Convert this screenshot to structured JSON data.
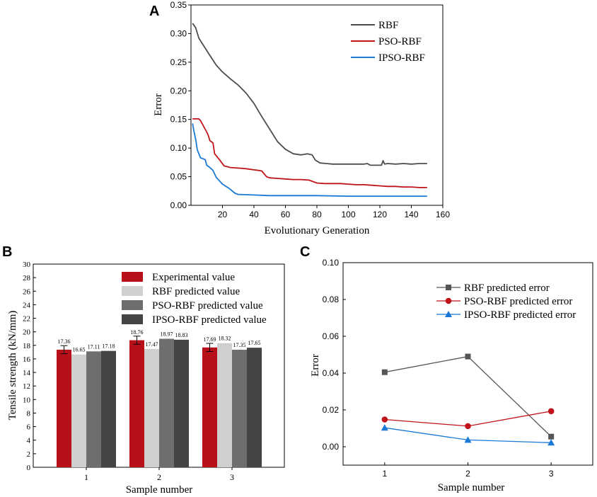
{
  "chart_data": [
    {
      "panel": "A",
      "type": "line",
      "title": "",
      "xlabel": "Evolutionary Generation",
      "ylabel": "Error",
      "xlim": [
        0,
        160
      ],
      "ylim": [
        0,
        0.35
      ],
      "xticks": [
        20,
        40,
        60,
        80,
        100,
        120,
        140,
        160
      ],
      "yticks": [
        0.0,
        0.05,
        0.1,
        0.15,
        0.2,
        0.25,
        0.3,
        0.35
      ],
      "xtick_labels": [
        "20",
        "40",
        "60",
        "80",
        "100",
        "120",
        "140",
        "160"
      ],
      "ytick_labels": [
        "0.00",
        "0.05",
        "0.10",
        "0.15",
        "0.20",
        "0.25",
        "0.30",
        "0.35"
      ],
      "legend_position": "top-right",
      "series": [
        {
          "name": "RBF",
          "color": "#4d4d4d",
          "x": [
            1,
            3,
            5,
            8,
            12,
            16,
            20,
            25,
            30,
            35,
            40,
            45,
            50,
            55,
            60,
            65,
            70,
            74,
            77,
            79,
            82,
            86,
            90,
            95,
            100,
            105,
            110,
            112,
            114,
            118,
            121,
            122,
            123,
            125,
            130,
            135,
            140,
            145,
            150
          ],
          "y": [
            0.318,
            0.31,
            0.292,
            0.279,
            0.262,
            0.245,
            0.233,
            0.221,
            0.21,
            0.196,
            0.178,
            0.155,
            0.133,
            0.111,
            0.098,
            0.09,
            0.088,
            0.09,
            0.088,
            0.079,
            0.074,
            0.073,
            0.072,
            0.072,
            0.072,
            0.072,
            0.072,
            0.073,
            0.07,
            0.07,
            0.07,
            0.078,
            0.072,
            0.073,
            0.072,
            0.073,
            0.072,
            0.073,
            0.073
          ]
        },
        {
          "name": "PSO-RBF",
          "color": "#c0141a",
          "x": [
            1,
            5,
            6,
            10,
            11,
            12,
            14,
            15,
            18,
            21,
            25,
            30,
            35,
            40,
            43,
            45,
            48,
            50,
            55,
            60,
            65,
            70,
            75,
            80,
            85,
            90,
            95,
            100,
            105,
            110,
            115,
            120,
            125,
            130,
            135,
            140,
            145,
            150
          ],
          "y": [
            0.151,
            0.151,
            0.148,
            0.128,
            0.122,
            0.113,
            0.109,
            0.09,
            0.08,
            0.069,
            0.066,
            0.065,
            0.064,
            0.062,
            0.061,
            0.06,
            0.05,
            0.048,
            0.047,
            0.046,
            0.045,
            0.045,
            0.044,
            0.039,
            0.038,
            0.038,
            0.038,
            0.037,
            0.036,
            0.036,
            0.035,
            0.034,
            0.033,
            0.033,
            0.032,
            0.032,
            0.031,
            0.031
          ]
        },
        {
          "name": "IPSO-RBF",
          "color": "#1a79d6",
          "x": [
            1,
            2,
            3,
            4,
            6,
            9,
            10,
            12,
            14,
            16,
            19,
            20,
            24,
            28,
            30,
            40,
            50,
            60,
            80,
            100,
            120,
            140,
            150
          ],
          "y": [
            0.143,
            0.128,
            0.115,
            0.097,
            0.083,
            0.08,
            0.07,
            0.066,
            0.061,
            0.049,
            0.04,
            0.037,
            0.03,
            0.021,
            0.019,
            0.018,
            0.017,
            0.017,
            0.017,
            0.016,
            0.016,
            0.016,
            0.016
          ]
        }
      ]
    },
    {
      "panel": "B",
      "type": "bar",
      "title": "",
      "xlabel": "Sample number",
      "ylabel": "Tensile strength  (kN/mm)",
      "ylim": [
        0,
        30
      ],
      "yticks": [
        0,
        2,
        4,
        6,
        8,
        10,
        12,
        14,
        16,
        18,
        20,
        22,
        24,
        26,
        28,
        30
      ],
      "ytick_labels": [
        "0",
        "2",
        "4",
        "6",
        "8",
        "10",
        "12",
        "14",
        "16",
        "18",
        "20",
        "22",
        "24",
        "26",
        "28",
        "30"
      ],
      "categories": [
        "1",
        "2",
        "3"
      ],
      "legend_position": "top-right",
      "series": [
        {
          "name": "Experimental value",
          "color": "#b81018",
          "values": [
            17.36,
            18.76,
            17.69
          ],
          "labels": [
            "17.36",
            "18.76",
            "17.69"
          ],
          "error": [
            0.6,
            0.6,
            0.6
          ]
        },
        {
          "name": "RBF predicted value",
          "color": "#cfcfcf",
          "values": [
            16.65,
            17.47,
            18.32
          ],
          "labels": [
            "16.65",
            "17.47",
            "18.32"
          ]
        },
        {
          "name": "PSO-RBF predicted value",
          "color": "#6e6e6e",
          "values": [
            17.11,
            18.97,
            17.35
          ],
          "labels": [
            "17.11",
            "18.97",
            "17.35"
          ]
        },
        {
          "name": "IPSO-RBF predicted value",
          "color": "#444444",
          "values": [
            17.18,
            18.83,
            17.65
          ],
          "labels": [
            "17.18",
            "18.83",
            "17.65"
          ]
        }
      ]
    },
    {
      "panel": "C",
      "type": "line",
      "title": "",
      "xlabel": "Sample number",
      "ylabel": "Error",
      "xlim": [
        0.5,
        3.5
      ],
      "ylim": [
        -0.01,
        0.1
      ],
      "xticks": [
        1,
        2,
        3
      ],
      "yticks": [
        0.0,
        0.02,
        0.04,
        0.06,
        0.08,
        0.1
      ],
      "xtick_labels": [
        "1",
        "2",
        "3"
      ],
      "ytick_labels": [
        "0.00",
        "0.02",
        "0.04",
        "0.06",
        "0.08",
        "0.10"
      ],
      "legend_position": "top-right",
      "series": [
        {
          "name": "RBF predicted error",
          "color": "#555555",
          "marker": "square",
          "x": [
            1,
            2,
            3
          ],
          "y": [
            0.0405,
            0.049,
            0.0055
          ]
        },
        {
          "name": "PSO-RBF predicted error",
          "color": "#c0141a",
          "marker": "circle",
          "x": [
            1,
            2,
            3
          ],
          "y": [
            0.0148,
            0.0112,
            0.0193
          ]
        },
        {
          "name": "IPSO-RBF predicted error",
          "color": "#1a79d6",
          "marker": "triangle",
          "x": [
            1,
            2,
            3
          ],
          "y": [
            0.0103,
            0.0037,
            0.0022
          ]
        }
      ]
    }
  ],
  "panel_labels": {
    "a": "A",
    "b": "B",
    "c": "C"
  }
}
